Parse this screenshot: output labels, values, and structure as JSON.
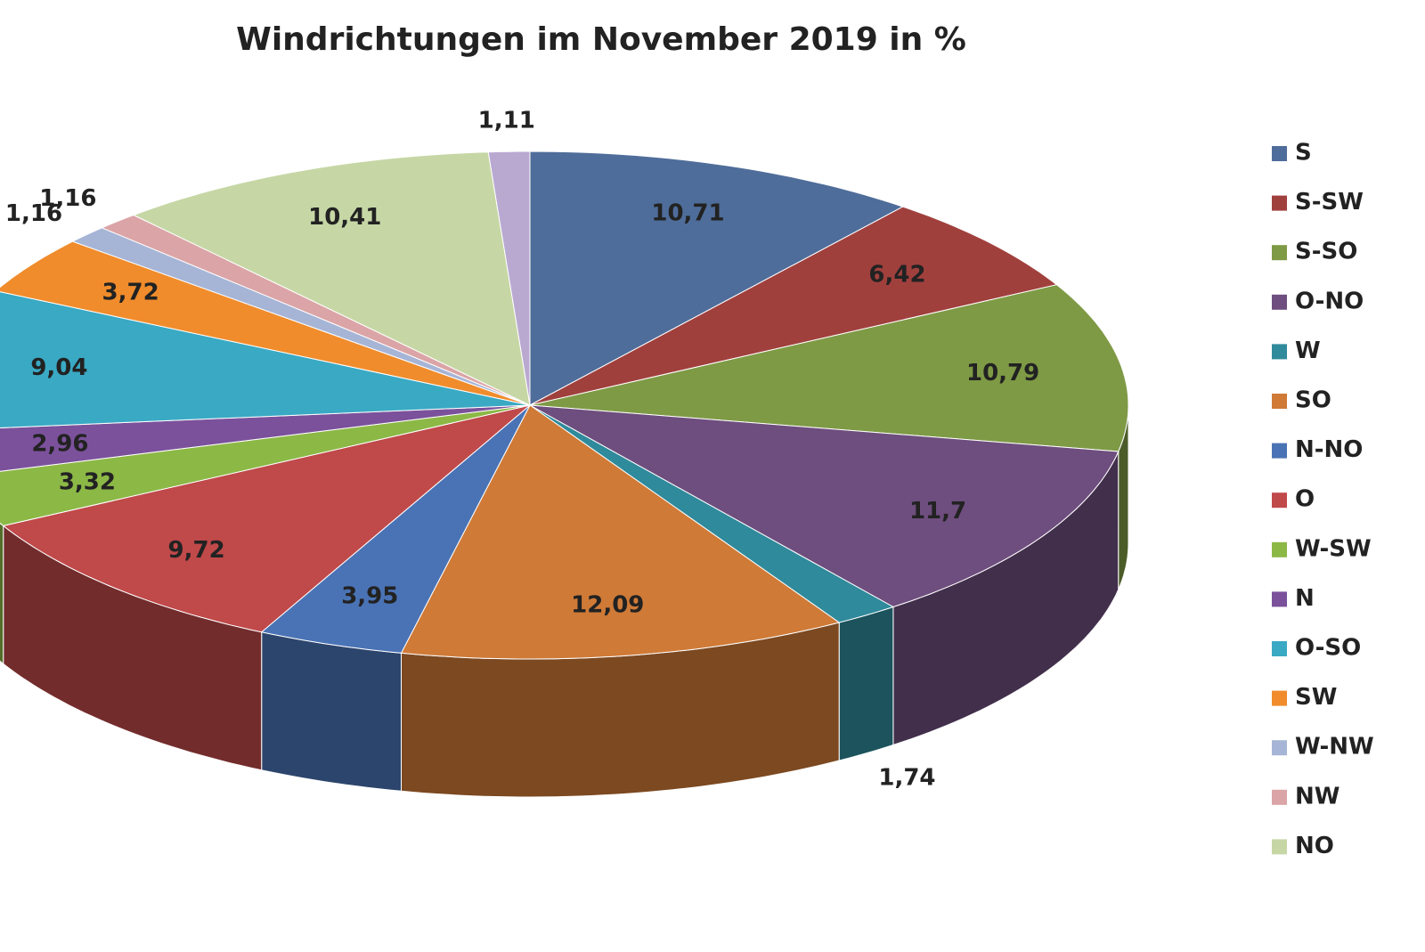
{
  "chart_data": {
    "type": "pie3d",
    "title": "Windrichtungen im November 2019 in %",
    "categories": [
      "S",
      "S-SW",
      "S-SO",
      "O-NO",
      "W",
      "SO",
      "N-NO",
      "O",
      "W-SW",
      "N",
      "O-SO",
      "SW",
      "W-NW",
      "NW",
      "NO",
      null
    ],
    "values": [
      10.71,
      6.42,
      10.79,
      11.7,
      1.74,
      12.09,
      3.95,
      9.72,
      3.32,
      2.96,
      9.04,
      3.72,
      1.16,
      1.16,
      10.41,
      1.11
    ],
    "value_labels": [
      "10,71",
      "6,42",
      "10,79",
      "11,7",
      "1,74",
      "12,09",
      "3,95",
      "9,72",
      "3,32",
      "2,96",
      "9,04",
      "3,72",
      "1,16",
      "1,16",
      "10,41",
      "1,11"
    ],
    "colors": [
      "#4f6d9a",
      "#a0403d",
      "#7e9a45",
      "#6e4e7e",
      "#2f8a9b",
      "#cf7a37",
      "#4a73b5",
      "#c0494a",
      "#8cb846",
      "#7b519b",
      "#3aa9c4",
      "#f08c2c",
      "#a6b5d6",
      "#dba4a6",
      "#c6d7a5",
      "#b9a9d1"
    ],
    "legend": "right"
  }
}
